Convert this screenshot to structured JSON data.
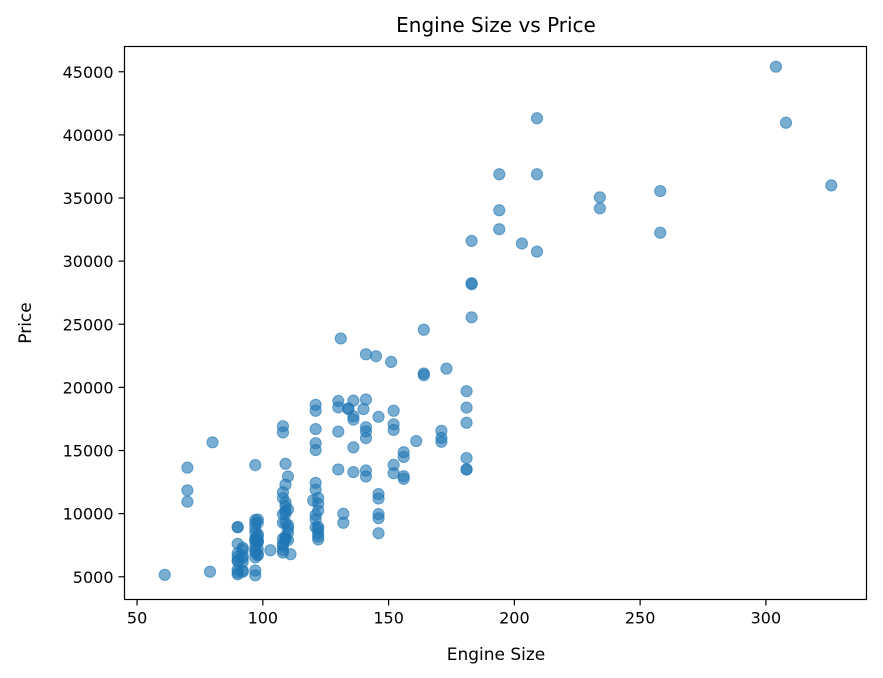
{
  "chart_data": {
    "type": "scatter",
    "title": "Engine Size vs Price",
    "xlabel": "Engine Size",
    "ylabel": "Price",
    "xlim": [
      45,
      340
    ],
    "ylim": [
      3200,
      47000
    ],
    "xticks": [
      50,
      100,
      150,
      200,
      250,
      300
    ],
    "yticks": [
      5000,
      10000,
      15000,
      20000,
      25000,
      30000,
      35000,
      40000,
      45000
    ],
    "grid": false,
    "marker_color": "#1f77b4",
    "marker_opacity": 0.6,
    "series": [
      {
        "points": [
          [
            61,
            5151
          ],
          [
            70,
            13645
          ],
          [
            70,
            11845
          ],
          [
            70,
            10945
          ],
          [
            79,
            5399
          ],
          [
            80,
            15645
          ],
          [
            90,
            8916
          ],
          [
            90,
            8949
          ],
          [
            90,
            7609
          ],
          [
            90,
            6575
          ],
          [
            90,
            6229
          ],
          [
            90,
            5572
          ],
          [
            90,
            5195
          ],
          [
            90,
            6295
          ],
          [
            90,
            6855
          ],
          [
            90,
            5348
          ],
          [
            92,
            6479
          ],
          [
            92,
            7129
          ],
          [
            92,
            7295
          ],
          [
            92,
            6189
          ],
          [
            92,
            6669
          ],
          [
            92,
            5499
          ],
          [
            92,
            5389
          ],
          [
            97,
            7775
          ],
          [
            97,
            9495
          ],
          [
            97,
            7975
          ],
          [
            97,
            8495
          ],
          [
            97,
            8845
          ],
          [
            97,
            13845
          ],
          [
            97,
            7995
          ],
          [
            97,
            7099
          ],
          [
            97,
            6938
          ],
          [
            97,
            9233
          ],
          [
            97,
            6529
          ],
          [
            97,
            7349
          ],
          [
            97,
            5118
          ],
          [
            97,
            5499
          ],
          [
            98,
            7898
          ],
          [
            98,
            8238
          ],
          [
            98,
            9298
          ],
          [
            98,
            9538
          ],
          [
            98,
            8358
          ],
          [
            98,
            7788
          ],
          [
            98,
            7738
          ],
          [
            98,
            7198
          ],
          [
            98,
            6795
          ],
          [
            98,
            6695
          ],
          [
            103,
            7099
          ],
          [
            108,
            16925
          ],
          [
            108,
            16430
          ],
          [
            108,
            11694
          ],
          [
            108,
            11245
          ],
          [
            108,
            9960
          ],
          [
            108,
            9279
          ],
          [
            108,
            8013
          ],
          [
            108,
            7603
          ],
          [
            108,
            7463
          ],
          [
            108,
            7126
          ],
          [
            108,
            6918
          ],
          [
            109,
            13950
          ],
          [
            109,
            12290
          ],
          [
            109,
            10898
          ],
          [
            109,
            10595
          ],
          [
            109,
            10198
          ],
          [
            109,
            9995
          ],
          [
            109,
            9295
          ],
          [
            109,
            8195
          ],
          [
            109,
            7975
          ],
          [
            109,
            7995
          ],
          [
            110,
            12945
          ],
          [
            110,
            10345
          ],
          [
            110,
            9095
          ],
          [
            110,
            8845
          ],
          [
            110,
            8495
          ],
          [
            110,
            7895
          ],
          [
            111,
            6785
          ],
          [
            120,
            11048
          ],
          [
            121,
            18620
          ],
          [
            121,
            18150
          ],
          [
            121,
            16695
          ],
          [
            121,
            15580
          ],
          [
            121,
            15040
          ],
          [
            121,
            12440
          ],
          [
            121,
            11900
          ],
          [
            121,
            9895
          ],
          [
            121,
            8921
          ],
          [
            121,
            9549
          ],
          [
            122,
            11248
          ],
          [
            122,
            10795
          ],
          [
            122,
            10245
          ],
          [
            122,
            8948
          ],
          [
            122,
            8778
          ],
          [
            122,
            8449
          ],
          [
            122,
            8189
          ],
          [
            122,
            7957
          ],
          [
            131,
            23875
          ],
          [
            130,
            18920
          ],
          [
            130,
            18420
          ],
          [
            130,
            16500
          ],
          [
            130,
            13499
          ],
          [
            132,
            9989
          ],
          [
            132,
            9279
          ],
          [
            134,
            18280
          ],
          [
            134,
            18344
          ],
          [
            136,
            18950
          ],
          [
            136,
            17710
          ],
          [
            136,
            17450
          ],
          [
            136,
            15250
          ],
          [
            136,
            13295
          ],
          [
            140,
            18280
          ],
          [
            141,
            22625
          ],
          [
            141,
            19045
          ],
          [
            141,
            16845
          ],
          [
            141,
            16515
          ],
          [
            141,
            15985
          ],
          [
            141,
            13415
          ],
          [
            141,
            12940
          ],
          [
            145,
            22470
          ],
          [
            146,
            17669
          ],
          [
            146,
            11549
          ],
          [
            146,
            11199
          ],
          [
            146,
            9959
          ],
          [
            146,
            9639
          ],
          [
            146,
            8449
          ],
          [
            151,
            22018
          ],
          [
            152,
            18150
          ],
          [
            152,
            17075
          ],
          [
            152,
            16630
          ],
          [
            152,
            13860
          ],
          [
            152,
            13200
          ],
          [
            156,
            14869
          ],
          [
            156,
            14489
          ],
          [
            156,
            12964
          ],
          [
            156,
            12764
          ],
          [
            161,
            15750
          ],
          [
            164,
            24565
          ],
          [
            164,
            21105
          ],
          [
            164,
            20970
          ],
          [
            171,
            16558
          ],
          [
            171,
            15998
          ],
          [
            171,
            15690
          ],
          [
            173,
            21485
          ],
          [
            181,
            19699
          ],
          [
            181,
            18399
          ],
          [
            181,
            17199
          ],
          [
            181,
            14399
          ],
          [
            181,
            13499
          ],
          [
            181,
            13499
          ],
          [
            183,
            31600
          ],
          [
            183,
            28248
          ],
          [
            183,
            28176
          ],
          [
            183,
            25552
          ],
          [
            194,
            36880
          ],
          [
            194,
            34028
          ],
          [
            194,
            32528
          ],
          [
            203,
            31400
          ],
          [
            209,
            41315
          ],
          [
            209,
            36880
          ],
          [
            209,
            30760
          ],
          [
            234,
            35056
          ],
          [
            234,
            34184
          ],
          [
            258,
            35550
          ],
          [
            258,
            32250
          ],
          [
            304,
            45400
          ],
          [
            308,
            40960
          ],
          [
            326,
            36000
          ]
        ]
      }
    ]
  }
}
